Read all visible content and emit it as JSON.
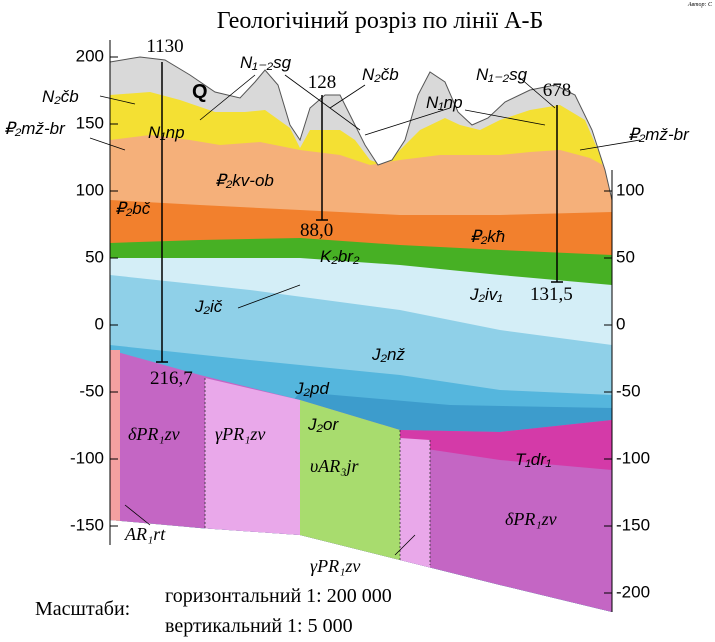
{
  "title": "Геологічіний розріз по лінії А-Б",
  "author": "Автор: С",
  "left_axis": {
    "ticks": [
      200,
      150,
      100,
      50,
      0,
      -50,
      -100,
      -150
    ]
  },
  "right_axis": {
    "ticks": [
      100,
      50,
      0,
      -50,
      -100,
      -150,
      -200
    ]
  },
  "wells": [
    {
      "name": "1130",
      "depth": "216,7"
    },
    {
      "name": "128",
      "depth": "88,0"
    },
    {
      "name": "678",
      "depth": "131,5"
    }
  ],
  "labels": [
    "N₂čb",
    "Q",
    "N₁₋₂sg",
    "N₂čb",
    "N₁np",
    "N₁₋₂sg",
    "N₁np",
    "₽₂mž-br",
    "₽₂kv-ob",
    "₽₂mž-br",
    "₽₂bč",
    "₽₂kħ",
    "K₂br₂",
    "J₂iv₁",
    "J₂ič",
    "J₂nž",
    "J₂pd",
    "J₂or",
    "T₁dr₁",
    "δPR₁zv",
    "γPR₁zv",
    "υAR₃jr",
    "δPR₁zv",
    "AR₁rt",
    "γPR₁zv"
  ],
  "scale": {
    "caption": "Масштаби:",
    "horizontal": "горизонтальний 1: 200 000",
    "vertical": "вертикальний 1: 5 000"
  }
}
